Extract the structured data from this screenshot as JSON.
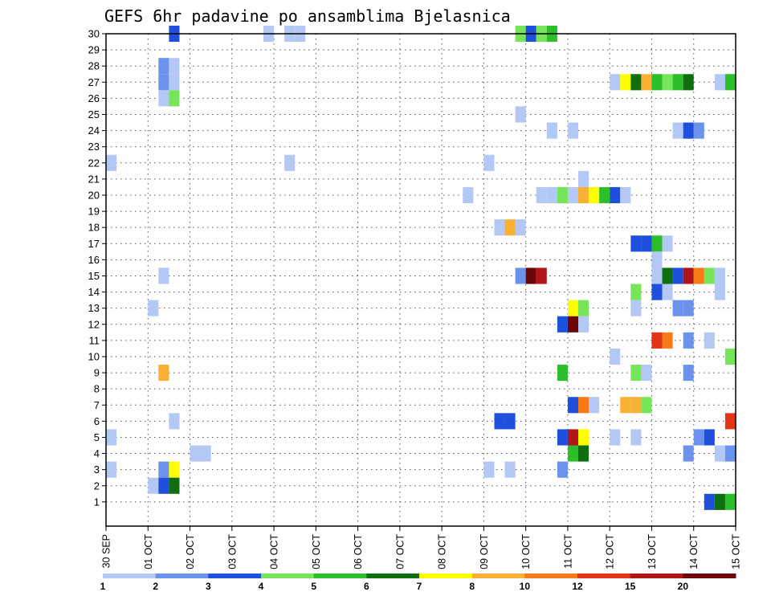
{
  "chart_data": {
    "type": "heatmap",
    "title": "GEFS 6hr padavine po ansamblima Bjelasnica",
    "xlabel": "",
    "ylabel": "",
    "y_ticks": [
      "1",
      "2",
      "3",
      "4",
      "5",
      "6",
      "7",
      "8",
      "9",
      "10",
      "11",
      "12",
      "13",
      "14",
      "15",
      "16",
      "17",
      "18",
      "19",
      "20",
      "21",
      "22",
      "23",
      "24",
      "25",
      "26",
      "27",
      "28",
      "29",
      "30"
    ],
    "x_ticks": [
      "30 SEP",
      "01 OCT",
      "02 OCT",
      "03 OCT",
      "04 OCT",
      "05 OCT",
      "06 OCT",
      "07 OCT",
      "08 OCT",
      "09 OCT",
      "10 OCT",
      "11 OCT",
      "12 OCT",
      "13 OCT",
      "14 OCT",
      "15 OCT"
    ],
    "x_range_days": [
      0,
      15
    ],
    "y_range": [
      0,
      30
    ],
    "grid": true,
    "colorbar": {
      "tick_labels": [
        "1",
        "2",
        "3",
        "4",
        "5",
        "6",
        "7",
        "8",
        "10",
        "12",
        "15",
        "20"
      ],
      "colors": [
        "#b3c8f5",
        "#6b93ee",
        "#1f4fdd",
        "#76e55a",
        "#2bbf2b",
        "#0f6e0f",
        "#ffff00",
        "#f9b035",
        "#f77a16",
        "#e33417",
        "#b01616",
        "#6e0606"
      ]
    },
    "cells": [
      {
        "t": "01 OCT 12Z",
        "m": 30,
        "v": 3
      },
      {
        "t": "03 OCT 18Z",
        "m": 30,
        "v": 1
      },
      {
        "t": "04 OCT 06Z",
        "m": 30,
        "v": 1
      },
      {
        "t": "04 OCT 12Z",
        "m": 30,
        "v": 1
      },
      {
        "t": "09 OCT 18Z",
        "m": 30,
        "v": 4
      },
      {
        "t": "10 OCT 00Z",
        "m": 30,
        "v": 3
      },
      {
        "t": "10 OCT 06Z",
        "m": 30,
        "v": 4
      },
      {
        "t": "10 OCT 12Z",
        "m": 30,
        "v": 5
      },
      {
        "t": "01 OCT 06Z",
        "m": 28,
        "v": 2
      },
      {
        "t": "01 OCT 12Z",
        "m": 28,
        "v": 1
      },
      {
        "t": "01 OCT 06Z",
        "m": 27,
        "v": 2
      },
      {
        "t": "01 OCT 12Z",
        "m": 27,
        "v": 1
      },
      {
        "t": "12 OCT 00Z",
        "m": 27,
        "v": 1
      },
      {
        "t": "12 OCT 06Z",
        "m": 27,
        "v": 7
      },
      {
        "t": "12 OCT 12Z",
        "m": 27,
        "v": 6
      },
      {
        "t": "12 OCT 18Z",
        "m": 27,
        "v": 8
      },
      {
        "t": "13 OCT 00Z",
        "m": 27,
        "v": 5
      },
      {
        "t": "13 OCT 06Z",
        "m": 27,
        "v": 4
      },
      {
        "t": "13 OCT 12Z",
        "m": 27,
        "v": 5
      },
      {
        "t": "13 OCT 18Z",
        "m": 27,
        "v": 6
      },
      {
        "t": "14 OCT 12Z",
        "m": 27,
        "v": 1
      },
      {
        "t": "14 OCT 18Z",
        "m": 27,
        "v": 5
      },
      {
        "t": "01 OCT 06Z",
        "m": 26,
        "v": 1
      },
      {
        "t": "01 OCT 12Z",
        "m": 26,
        "v": 4
      },
      {
        "t": "09 OCT 18Z",
        "m": 25,
        "v": 1
      },
      {
        "t": "10 OCT 12Z",
        "m": 24,
        "v": 1
      },
      {
        "t": "11 OCT 00Z",
        "m": 24,
        "v": 1
      },
      {
        "t": "13 OCT 12Z",
        "m": 24,
        "v": 1
      },
      {
        "t": "13 OCT 18Z",
        "m": 24,
        "v": 3
      },
      {
        "t": "14 OCT 00Z",
        "m": 24,
        "v": 2
      },
      {
        "t": "30 SEP 00Z",
        "m": 22,
        "v": 1
      },
      {
        "t": "04 OCT 06Z",
        "m": 22,
        "v": 1
      },
      {
        "t": "09 OCT 00Z",
        "m": 22,
        "v": 1
      },
      {
        "t": "11 OCT 06Z",
        "m": 21,
        "v": 1
      },
      {
        "t": "08 OCT 12Z",
        "m": 20,
        "v": 1
      },
      {
        "t": "10 OCT 06Z",
        "m": 20,
        "v": 1
      },
      {
        "t": "10 OCT 12Z",
        "m": 20,
        "v": 1
      },
      {
        "t": "10 OCT 18Z",
        "m": 20,
        "v": 4
      },
      {
        "t": "11 OCT 00Z",
        "m": 20,
        "v": 1
      },
      {
        "t": "11 OCT 06Z",
        "m": 20,
        "v": 8
      },
      {
        "t": "11 OCT 12Z",
        "m": 20,
        "v": 7
      },
      {
        "t": "11 OCT 18Z",
        "m": 20,
        "v": 5
      },
      {
        "t": "12 OCT 00Z",
        "m": 20,
        "v": 3
      },
      {
        "t": "12 OCT 06Z",
        "m": 20,
        "v": 1
      },
      {
        "t": "09 OCT 06Z",
        "m": 18,
        "v": 1
      },
      {
        "t": "09 OCT 12Z",
        "m": 18,
        "v": 8
      },
      {
        "t": "09 OCT 18Z",
        "m": 18,
        "v": 1
      },
      {
        "t": "12 OCT 12Z",
        "m": 17,
        "v": 3
      },
      {
        "t": "12 OCT 18Z",
        "m": 17,
        "v": 3
      },
      {
        "t": "13 OCT 00Z",
        "m": 17,
        "v": 5
      },
      {
        "t": "13 OCT 06Z",
        "m": 17,
        "v": 1
      },
      {
        "t": "13 OCT 00Z",
        "m": 16,
        "v": 1
      },
      {
        "t": "01 OCT 06Z",
        "m": 15,
        "v": 1
      },
      {
        "t": "09 OCT 18Z",
        "m": 15,
        "v": 2
      },
      {
        "t": "10 OCT 00Z",
        "m": 15,
        "v": 20
      },
      {
        "t": "10 OCT 06Z",
        "m": 15,
        "v": 15
      },
      {
        "t": "13 OCT 00Z",
        "m": 15,
        "v": 1
      },
      {
        "t": "13 OCT 06Z",
        "m": 15,
        "v": 6
      },
      {
        "t": "13 OCT 12Z",
        "m": 15,
        "v": 3
      },
      {
        "t": "13 OCT 18Z",
        "m": 15,
        "v": 15
      },
      {
        "t": "14 OCT 00Z",
        "m": 15,
        "v": 10
      },
      {
        "t": "14 OCT 06Z",
        "m": 15,
        "v": 4
      },
      {
        "t": "14 OCT 12Z",
        "m": 15,
        "v": 1
      },
      {
        "t": "12 OCT 12Z",
        "m": 14,
        "v": 4
      },
      {
        "t": "13 OCT 00Z",
        "m": 14,
        "v": 3
      },
      {
        "t": "13 OCT 06Z",
        "m": 14,
        "v": 1
      },
      {
        "t": "14 OCT 12Z",
        "m": 14,
        "v": 1
      },
      {
        "t": "01 OCT 00Z",
        "m": 13,
        "v": 1
      },
      {
        "t": "11 OCT 00Z",
        "m": 13,
        "v": 7
      },
      {
        "t": "11 OCT 06Z",
        "m": 13,
        "v": 4
      },
      {
        "t": "12 OCT 12Z",
        "m": 13,
        "v": 1
      },
      {
        "t": "13 OCT 12Z",
        "m": 13,
        "v": 2
      },
      {
        "t": "13 OCT 18Z",
        "m": 13,
        "v": 2
      },
      {
        "t": "10 OCT 18Z",
        "m": 12,
        "v": 3
      },
      {
        "t": "11 OCT 00Z",
        "m": 12,
        "v": 20
      },
      {
        "t": "11 OCT 06Z",
        "m": 12,
        "v": 1
      },
      {
        "t": "13 OCT 00Z",
        "m": 11,
        "v": 12
      },
      {
        "t": "13 OCT 06Z",
        "m": 11,
        "v": 10
      },
      {
        "t": "13 OCT 18Z",
        "m": 11,
        "v": 2
      },
      {
        "t": "14 OCT 06Z",
        "m": 11,
        "v": 1
      },
      {
        "t": "12 OCT 00Z",
        "m": 10,
        "v": 1
      },
      {
        "t": "14 OCT 18Z",
        "m": 10,
        "v": 4
      },
      {
        "t": "01 OCT 06Z",
        "m": 9,
        "v": 8
      },
      {
        "t": "10 OCT 18Z",
        "m": 9,
        "v": 5
      },
      {
        "t": "12 OCT 12Z",
        "m": 9,
        "v": 4
      },
      {
        "t": "12 OCT 18Z",
        "m": 9,
        "v": 1
      },
      {
        "t": "13 OCT 18Z",
        "m": 9,
        "v": 2
      },
      {
        "t": "11 OCT 00Z",
        "m": 7,
        "v": 3
      },
      {
        "t": "11 OCT 06Z",
        "m": 7,
        "v": 10
      },
      {
        "t": "11 OCT 12Z",
        "m": 7,
        "v": 1
      },
      {
        "t": "12 OCT 06Z",
        "m": 7,
        "v": 8
      },
      {
        "t": "12 OCT 12Z",
        "m": 7,
        "v": 8
      },
      {
        "t": "12 OCT 18Z",
        "m": 7,
        "v": 4
      },
      {
        "t": "01 OCT 12Z",
        "m": 6,
        "v": 1
      },
      {
        "t": "09 OCT 06Z",
        "m": 6,
        "v": 3
      },
      {
        "t": "09 OCT 12Z",
        "m": 6,
        "v": 3
      },
      {
        "t": "14 OCT 18Z",
        "m": 6,
        "v": 12
      },
      {
        "t": "30 SEP 00Z",
        "m": 5,
        "v": 1
      },
      {
        "t": "10 OCT 18Z",
        "m": 5,
        "v": 3
      },
      {
        "t": "11 OCT 00Z",
        "m": 5,
        "v": 15
      },
      {
        "t": "11 OCT 06Z",
        "m": 5,
        "v": 7
      },
      {
        "t": "12 OCT 00Z",
        "m": 5,
        "v": 1
      },
      {
        "t": "12 OCT 12Z",
        "m": 5,
        "v": 1
      },
      {
        "t": "14 OCT 00Z",
        "m": 5,
        "v": 2
      },
      {
        "t": "14 OCT 06Z",
        "m": 5,
        "v": 3
      },
      {
        "t": "02 OCT 00Z",
        "m": 4,
        "v": 1
      },
      {
        "t": "02 OCT 06Z",
        "m": 4,
        "v": 1
      },
      {
        "t": "11 OCT 00Z",
        "m": 4,
        "v": 5
      },
      {
        "t": "11 OCT 06Z",
        "m": 4,
        "v": 6
      },
      {
        "t": "13 OCT 18Z",
        "m": 4,
        "v": 2
      },
      {
        "t": "14 OCT 12Z",
        "m": 4,
        "v": 1
      },
      {
        "t": "14 OCT 18Z",
        "m": 4,
        "v": 2
      },
      {
        "t": "30 SEP 00Z",
        "m": 3,
        "v": 1
      },
      {
        "t": "01 OCT 06Z",
        "m": 3,
        "v": 2
      },
      {
        "t": "01 OCT 12Z",
        "m": 3,
        "v": 7
      },
      {
        "t": "09 OCT 00Z",
        "m": 3,
        "v": 1
      },
      {
        "t": "09 OCT 12Z",
        "m": 3,
        "v": 1
      },
      {
        "t": "10 OCT 18Z",
        "m": 3,
        "v": 2
      },
      {
        "t": "01 OCT 00Z",
        "m": 2,
        "v": 1
      },
      {
        "t": "01 OCT 06Z",
        "m": 2,
        "v": 3
      },
      {
        "t": "01 OCT 12Z",
        "m": 2,
        "v": 6
      },
      {
        "t": "14 OCT 06Z",
        "m": 1,
        "v": 3
      },
      {
        "t": "14 OCT 12Z",
        "m": 1,
        "v": 6
      },
      {
        "t": "14 OCT 18Z",
        "m": 1,
        "v": 5
      }
    ]
  }
}
